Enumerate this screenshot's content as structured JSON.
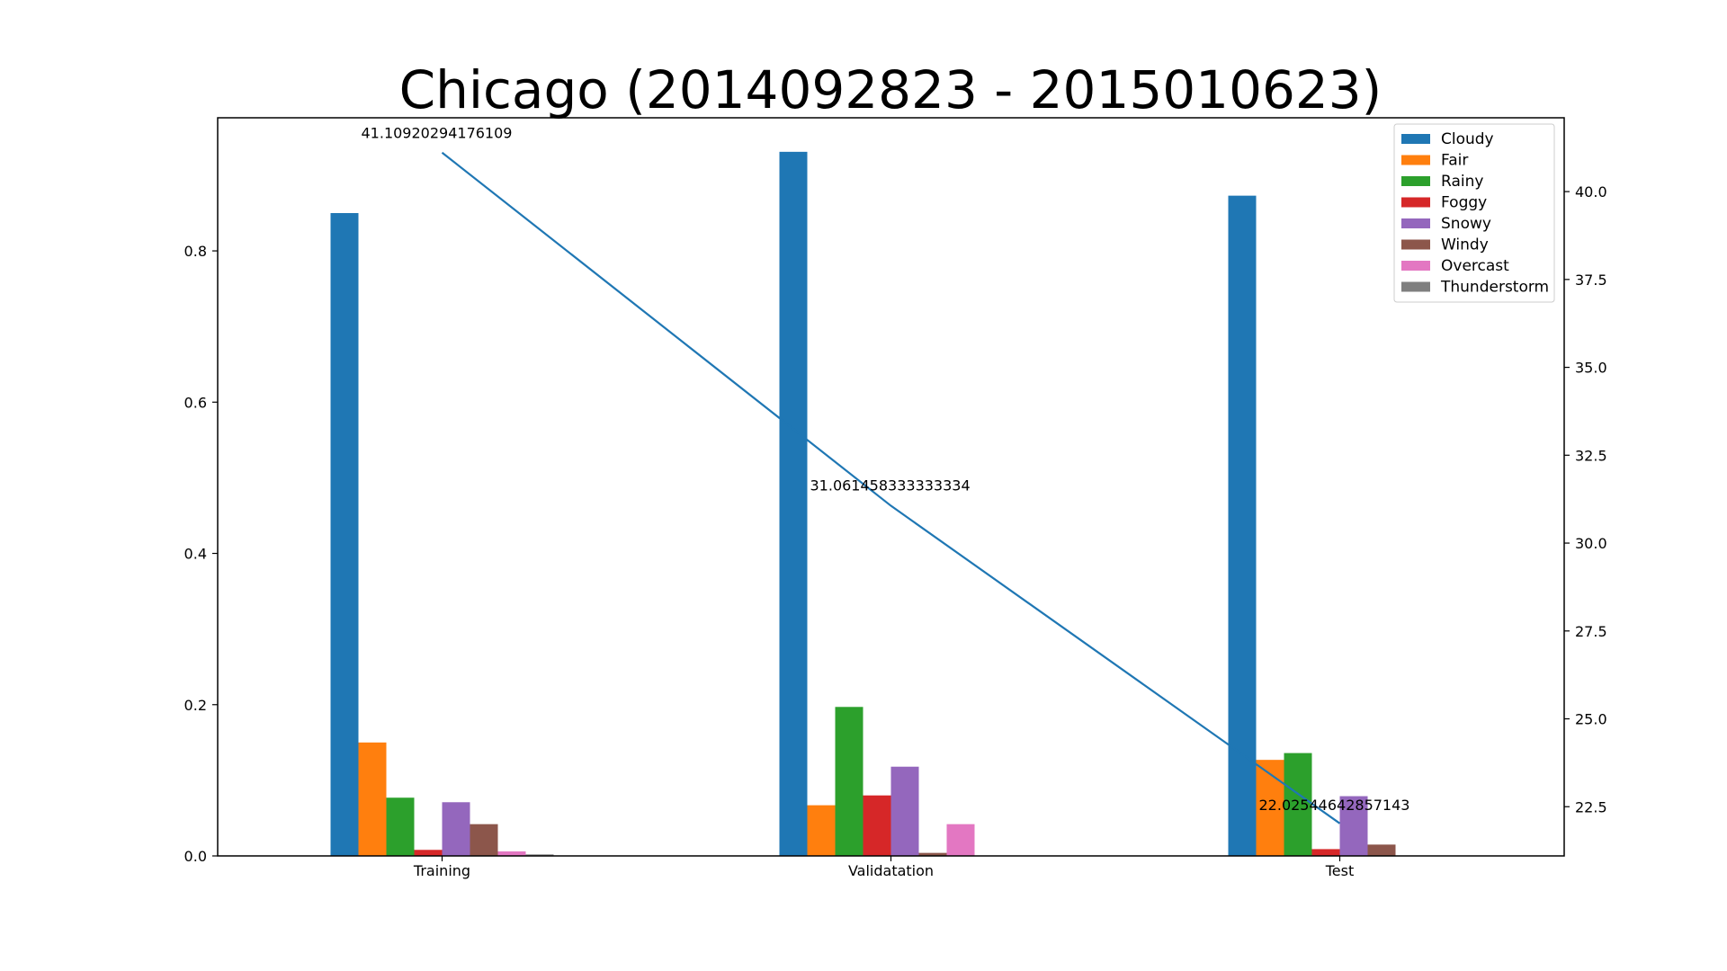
{
  "chart_data": {
    "type": "bar",
    "title": "Chicago (2014092823 - 2015010623)",
    "xlabel": "",
    "ylabel": "",
    "categories": [
      "Training",
      "Validatation",
      "Test"
    ],
    "ylim": [
      0,
      0.976
    ],
    "yticks": [
      0.0,
      0.2,
      0.4,
      0.6,
      0.8
    ],
    "ytick_labels": [
      "0.0",
      "0.2",
      "0.4",
      "0.6",
      "0.8"
    ],
    "series": [
      {
        "name": "Cloudy",
        "color": "#1f77b4",
        "values": [
          0.85,
          0.931,
          0.873
        ]
      },
      {
        "name": "Fair",
        "color": "#ff7f0e",
        "values": [
          0.15,
          0.067,
          0.127
        ]
      },
      {
        "name": "Rainy",
        "color": "#2ca02c",
        "values": [
          0.077,
          0.197,
          0.136
        ]
      },
      {
        "name": "Foggy",
        "color": "#d62728",
        "values": [
          0.008,
          0.08,
          0.009
        ]
      },
      {
        "name": "Snowy",
        "color": "#9467bd",
        "values": [
          0.071,
          0.118,
          0.079
        ]
      },
      {
        "name": "Windy",
        "color": "#8c564b",
        "values": [
          0.042,
          0.004,
          0.015
        ]
      },
      {
        "name": "Overcast",
        "color": "#e377c2",
        "values": [
          0.006,
          0.042,
          0.0
        ]
      },
      {
        "name": "Thunderstorm",
        "color": "#7f7f7f",
        "values": [
          0.002,
          0.0,
          0.0
        ]
      }
    ],
    "secondary_axis": {
      "type": "line",
      "color": "#1f77b4",
      "ylim": [
        21.1,
        42.1
      ],
      "yticks": [
        22.5,
        25.0,
        27.5,
        30.0,
        32.5,
        35.0,
        37.5,
        40.0
      ],
      "ytick_labels": [
        "22.5",
        "25.0",
        "27.5",
        "30.0",
        "32.5",
        "35.0",
        "37.5",
        "40.0"
      ],
      "values": [
        41.10920294176109,
        31.061458333333334,
        22.02544642857143
      ],
      "labels": [
        "41.10920294176109",
        "31.061458333333334",
        "22.02544642857143"
      ]
    },
    "legend": {
      "position": "top-right"
    }
  }
}
